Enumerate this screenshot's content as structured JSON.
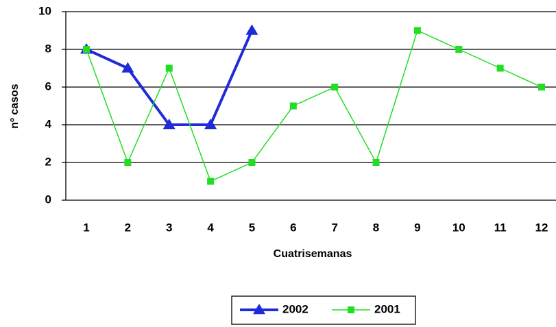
{
  "chart_data": {
    "type": "line",
    "x_label": "Cuatrisemanas",
    "y_label": "nº casos",
    "categories": [
      "1",
      "2",
      "3",
      "4",
      "5",
      "6",
      "7",
      "8",
      "9",
      "10",
      "11",
      "12"
    ],
    "series": [
      {
        "name": "2002",
        "color": "#1f2bd9",
        "marker": "triangle",
        "values": [
          8,
          7,
          4,
          4,
          9,
          null,
          null,
          null,
          null,
          null,
          null,
          null
        ]
      },
      {
        "name": "2001",
        "color": "#22dd22",
        "marker": "square",
        "values": [
          8,
          2,
          7,
          1,
          2,
          5,
          6,
          2,
          9,
          8,
          7,
          6
        ]
      }
    ],
    "ylim": [
      0,
      10
    ],
    "yticks": [
      0,
      2,
      4,
      6,
      8,
      10
    ],
    "grid": true,
    "legend": "bottom"
  }
}
